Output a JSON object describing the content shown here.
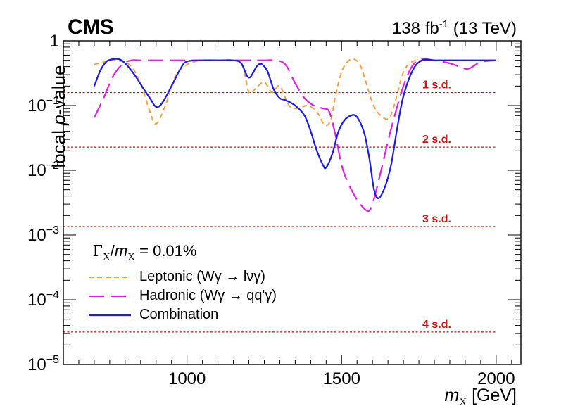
{
  "header": {
    "experiment": "CMS",
    "lumi_value": "138 fb",
    "lumi_exp": "-1",
    "lumi_energy": " (13 TeV)"
  },
  "axes": {
    "y_label_pre": "local ",
    "y_label_var": "p",
    "y_label_post": "-value",
    "x_label_var": "m",
    "x_label_sub": "X",
    "x_label_unit": " [GeV]"
  },
  "legend": {
    "title_sym": "Γ",
    "title_sub": "X",
    "title_slash": "/",
    "title_var": "m",
    "title_sub2": "X",
    "title_value": " = 0.01%",
    "entries": [
      {
        "label": "Leptonic (Wγ → lνγ)",
        "color": "#f4a040",
        "style": "dashed"
      },
      {
        "label": "Hadronic (Wγ → qq'γ)",
        "color": "#e020e0",
        "style": "longdash"
      },
      {
        "label": "Combination",
        "color": "#1a1aee",
        "style": "solid"
      }
    ]
  },
  "colors": {
    "leptonic": "#f4a040",
    "hadronic": "#e020e0",
    "combination": "#1a1aee",
    "significance": "#cc1111"
  },
  "chart_data": {
    "type": "line",
    "title": "",
    "xlabel": "m_X [GeV]",
    "ylabel": "local p-value",
    "yscale": "log",
    "xlim": [
      600,
      2080
    ],
    "ylim": [
      1e-05,
      1
    ],
    "x_ticks": [
      1000,
      1500,
      2000
    ],
    "x_tick_labels": [
      "1000",
      "1500",
      "2000"
    ],
    "y_ticks": [
      1e-05,
      0.0001,
      0.001,
      0.01,
      0.1,
      1
    ],
    "y_tick_labels": [
      {
        "base": "10",
        "exp": "−5"
      },
      {
        "base": "10",
        "exp": "−4"
      },
      {
        "base": "10",
        "exp": "−3"
      },
      {
        "base": "10",
        "exp": "−2"
      },
      {
        "base": "10",
        "exp": "−1"
      },
      {
        "base": "1",
        "exp": ""
      }
    ],
    "significance_lines": [
      {
        "label": "1 s.d.",
        "p": 0.1587
      },
      {
        "label": "2 s.d.",
        "p": 0.02275
      },
      {
        "label": "3 s.d.",
        "p": 0.00135
      },
      {
        "label": "4 s.d.",
        "p": 3.17e-05
      }
    ],
    "series": [
      {
        "name": "Leptonic (Wγ → lνγ)",
        "color": "#f4a040",
        "dash": "7,5",
        "x": [
          700,
          730,
          760,
          790,
          820,
          850,
          880,
          900,
          930,
          960,
          1000,
          1050,
          1100,
          1150,
          1180,
          1200,
          1225,
          1250,
          1275,
          1300,
          1330,
          1360,
          1390,
          1420,
          1445,
          1465,
          1480,
          1500,
          1520,
          1540,
          1560,
          1580,
          1600,
          1620,
          1650,
          1670,
          1700,
          1730,
          1760,
          1800,
          1850,
          1900,
          1950,
          2000
        ],
        "y": [
          0.43,
          0.47,
          0.5,
          0.48,
          0.4,
          0.22,
          0.08,
          0.052,
          0.1,
          0.27,
          0.43,
          0.5,
          0.5,
          0.5,
          0.42,
          0.16,
          0.19,
          0.23,
          0.16,
          0.2,
          0.1,
          0.09,
          0.1,
          0.08,
          0.05,
          0.06,
          0.14,
          0.33,
          0.48,
          0.52,
          0.42,
          0.22,
          0.11,
          0.075,
          0.062,
          0.1,
          0.33,
          0.48,
          0.5,
          0.5,
          0.5,
          0.5,
          0.5,
          0.5
        ]
      },
      {
        "name": "Hadronic (Wγ → qq'γ)",
        "color": "#e020e0",
        "dash": "22,9",
        "x": [
          700,
          730,
          760,
          790,
          820,
          850,
          900,
          950,
          1000,
          1050,
          1100,
          1200,
          1250,
          1290,
          1320,
          1350,
          1380,
          1410,
          1440,
          1460,
          1480,
          1500,
          1520,
          1550,
          1580,
          1595,
          1610,
          1630,
          1650,
          1670,
          1700,
          1730,
          1760,
          1800,
          1850,
          1880,
          1910,
          1950,
          2000
        ],
        "y": [
          0.065,
          0.13,
          0.28,
          0.43,
          0.5,
          0.5,
          0.5,
          0.5,
          0.5,
          0.5,
          0.5,
          0.5,
          0.5,
          0.5,
          0.42,
          0.22,
          0.13,
          0.1,
          0.09,
          0.08,
          0.035,
          0.012,
          0.0065,
          0.0035,
          0.0024,
          0.0026,
          0.0045,
          0.011,
          0.028,
          0.065,
          0.2,
          0.42,
          0.52,
          0.5,
          0.45,
          0.4,
          0.37,
          0.47,
          0.5
        ]
      },
      {
        "name": "Combination",
        "color": "#1a1aee",
        "dash": "",
        "x": [
          700,
          720,
          740,
          760,
          780,
          800,
          830,
          860,
          880,
          900,
          920,
          950,
          980,
          1000,
          1050,
          1100,
          1150,
          1175,
          1200,
          1225,
          1240,
          1260,
          1280,
          1300,
          1320,
          1350,
          1380,
          1400,
          1420,
          1440,
          1450,
          1470,
          1490,
          1510,
          1530,
          1545,
          1560,
          1575,
          1590,
          1605,
          1620,
          1640,
          1660,
          1680,
          1700,
          1730,
          1760,
          1800,
          1850,
          1900,
          1950,
          2000
        ],
        "y": [
          0.2,
          0.35,
          0.48,
          0.52,
          0.52,
          0.45,
          0.3,
          0.18,
          0.13,
          0.095,
          0.11,
          0.2,
          0.38,
          0.48,
          0.5,
          0.5,
          0.5,
          0.45,
          0.27,
          0.4,
          0.44,
          0.34,
          0.18,
          0.13,
          0.12,
          0.1,
          0.07,
          0.04,
          0.02,
          0.012,
          0.011,
          0.018,
          0.04,
          0.06,
          0.07,
          0.07,
          0.055,
          0.035,
          0.015,
          0.005,
          0.0037,
          0.0055,
          0.012,
          0.045,
          0.14,
          0.35,
          0.5,
          0.5,
          0.5,
          0.5,
          0.5,
          0.5
        ]
      }
    ]
  }
}
